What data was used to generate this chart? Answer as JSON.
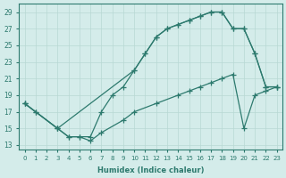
{
  "xlabel": "Humidex (Indice chaleur)",
  "ylabel": "",
  "bg_color": "#d4ecea",
  "grid_color": "#b8d8d4",
  "line_color": "#2d7a6e",
  "xlim": [
    -0.5,
    23.5
  ],
  "ylim": [
    12.5,
    30
  ],
  "yticks": [
    13,
    15,
    17,
    19,
    21,
    23,
    25,
    27,
    29
  ],
  "xticks": [
    0,
    1,
    2,
    3,
    4,
    5,
    6,
    7,
    8,
    9,
    10,
    11,
    12,
    13,
    14,
    15,
    16,
    17,
    18,
    19,
    20,
    21,
    22,
    23
  ],
  "curve1_x": [
    0,
    1,
    3,
    10,
    11,
    12,
    13,
    14,
    15,
    16,
    17,
    18,
    19,
    20,
    21,
    22,
    23
  ],
  "curve1_y": [
    18,
    17,
    15,
    22,
    24,
    26,
    27,
    27.5,
    28,
    28.5,
    29,
    29,
    27,
    27,
    24,
    20,
    20
  ],
  "curve2_x": [
    0,
    1,
    3,
    4,
    5,
    6,
    7,
    8,
    9,
    10,
    11,
    12,
    13,
    14,
    15,
    16,
    17,
    18,
    19,
    20,
    21,
    22,
    23
  ],
  "curve2_y": [
    18,
    17,
    15,
    14,
    14,
    14,
    17,
    19,
    20,
    22,
    24,
    26,
    27,
    27.5,
    28,
    28.5,
    29,
    29,
    27,
    27,
    24,
    20,
    20
  ],
  "curve3_x": [
    0,
    3,
    4,
    5,
    6,
    7,
    9,
    10,
    12,
    14,
    15,
    16,
    17,
    18,
    19,
    20,
    21,
    22,
    23
  ],
  "curve3_y": [
    18,
    15,
    14,
    14,
    13.5,
    14.5,
    16,
    17,
    18,
    19,
    19.5,
    20,
    20.5,
    21,
    21.5,
    15,
    19,
    19.5,
    20
  ]
}
